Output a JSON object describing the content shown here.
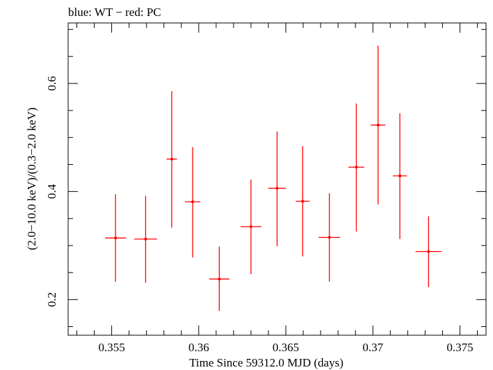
{
  "chart_data": {
    "type": "scatter",
    "title": "blue: WT − red: PC",
    "xlabel": "Time Since 59312.0 MJD (days)",
    "ylabel": "(2.0−10.0 keV)/(0.3−2.0 keV)",
    "xlim": [
      0.3525,
      0.3765
    ],
    "ylim": [
      0.134,
      0.712
    ],
    "x_ticks": [
      0.355,
      0.36,
      0.365,
      0.37,
      0.375
    ],
    "x_tick_labels": [
      "0.355",
      "0.36",
      "0.365",
      "0.37",
      "0.375"
    ],
    "y_ticks": [
      0.2,
      0.4,
      0.6
    ],
    "y_tick_labels": [
      "0.2",
      "0.4",
      "0.6"
    ],
    "grid": false,
    "colors": {
      "PC": "#ff0000",
      "WT": "#0000ff",
      "axes": "#000000"
    },
    "series": [
      {
        "name": "PC",
        "color": "#ff0000",
        "points": [
          {
            "x": 0.35522,
            "xerr": 0.0006,
            "y": 0.314,
            "ylo": 0.233,
            "yhi": 0.395
          },
          {
            "x": 0.35695,
            "xerr": 0.00065,
            "y": 0.312,
            "ylo": 0.231,
            "yhi": 0.392
          },
          {
            "x": 0.35845,
            "xerr": 0.0003,
            "y": 0.46,
            "ylo": 0.333,
            "yhi": 0.586
          },
          {
            "x": 0.35965,
            "xerr": 0.00045,
            "y": 0.381,
            "ylo": 0.278,
            "yhi": 0.482
          },
          {
            "x": 0.36118,
            "xerr": 0.00058,
            "y": 0.238,
            "ylo": 0.179,
            "yhi": 0.298
          },
          {
            "x": 0.363,
            "xerr": 0.0006,
            "y": 0.335,
            "ylo": 0.247,
            "yhi": 0.422
          },
          {
            "x": 0.3645,
            "xerr": 0.0005,
            "y": 0.406,
            "ylo": 0.299,
            "yhi": 0.511
          },
          {
            "x": 0.36597,
            "xerr": 0.0004,
            "y": 0.382,
            "ylo": 0.28,
            "yhi": 0.484
          },
          {
            "x": 0.3675,
            "xerr": 0.00062,
            "y": 0.315,
            "ylo": 0.233,
            "yhi": 0.397
          },
          {
            "x": 0.36905,
            "xerr": 0.00045,
            "y": 0.445,
            "ylo": 0.326,
            "yhi": 0.563
          },
          {
            "x": 0.3703,
            "xerr": 0.00042,
            "y": 0.523,
            "ylo": 0.376,
            "yhi": 0.67
          },
          {
            "x": 0.37155,
            "xerr": 0.0004,
            "y": 0.429,
            "ylo": 0.312,
            "yhi": 0.545
          },
          {
            "x": 0.3732,
            "xerr": 0.00075,
            "y": 0.289,
            "ylo": 0.223,
            "yhi": 0.354
          }
        ]
      }
    ]
  }
}
